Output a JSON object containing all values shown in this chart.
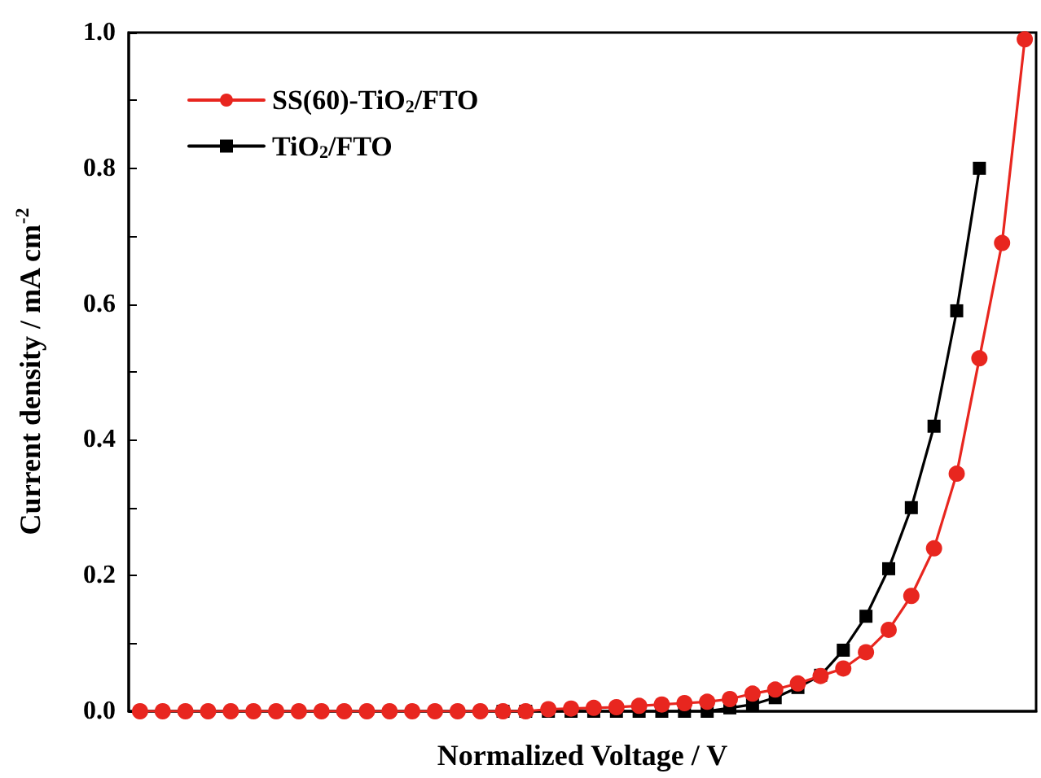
{
  "chart_data": {
    "type": "line",
    "xlabel": "Normalized Voltage / V",
    "ylabel": "Current density / mA cm$^{-2}$",
    "categories": [
      null,
      null,
      null,
      null,
      null,
      null,
      null,
      null,
      null,
      null,
      null,
      null,
      null,
      null,
      null,
      null,
      null,
      null,
      null,
      null,
      null,
      null,
      null,
      null,
      null,
      null,
      null,
      null,
      null,
      null,
      null,
      null,
      null,
      null,
      null,
      null,
      null,
      null,
      null,
      null
    ],
    "series": [
      {
        "name": "SS(60)-TiO$_{2}$/FTO",
        "color": "#e8261f",
        "marker": "circle",
        "values": [
          0,
          0,
          0,
          0,
          0,
          0,
          0,
          0,
          0,
          0,
          0,
          0,
          0,
          0,
          0,
          0,
          0,
          0,
          0.003,
          0.004,
          0.005,
          0.006,
          0.008,
          0.01,
          0.012,
          0.014,
          0.018,
          0.026,
          0.032,
          0.041,
          0.052,
          0.063,
          0.087,
          0.12,
          0.17,
          0.24,
          0.35,
          0.52,
          0.69,
          0.99
        ]
      },
      {
        "name": "TiO$_{2}$/FTO",
        "color": "#000000",
        "marker": "square",
        "values": [
          null,
          null,
          null,
          null,
          null,
          null,
          null,
          null,
          null,
          null,
          null,
          null,
          null,
          null,
          null,
          null,
          0,
          0,
          0,
          0,
          0,
          0,
          0,
          0,
          0,
          0,
          0.005,
          0.01,
          0.02,
          0.035,
          0.053,
          0.09,
          0.14,
          0.21,
          0.3,
          0.42,
          0.59,
          0.8,
          null,
          null
        ]
      }
    ],
    "ylim": [
      0,
      1
    ],
    "yticks": [
      {
        "value": 0,
        "label": "0.0"
      },
      {
        "value": 0.1,
        "label": null
      },
      {
        "value": 0.2,
        "label": "0.2"
      },
      {
        "value": 0.3,
        "label": null
      },
      {
        "value": 0.4,
        "label": "0.4"
      },
      {
        "value": 0.5,
        "label": null
      },
      {
        "value": 0.6,
        "label": "0.6"
      },
      {
        "value": 0.7,
        "label": null
      },
      {
        "value": 0.8,
        "label": "0.8"
      },
      {
        "value": 0.9,
        "label": null
      },
      {
        "value": 1,
        "label": "1.0"
      }
    ],
    "tick_labels": "y",
    "legend": "top left",
    "line_style": "solid",
    "grid": false
  }
}
